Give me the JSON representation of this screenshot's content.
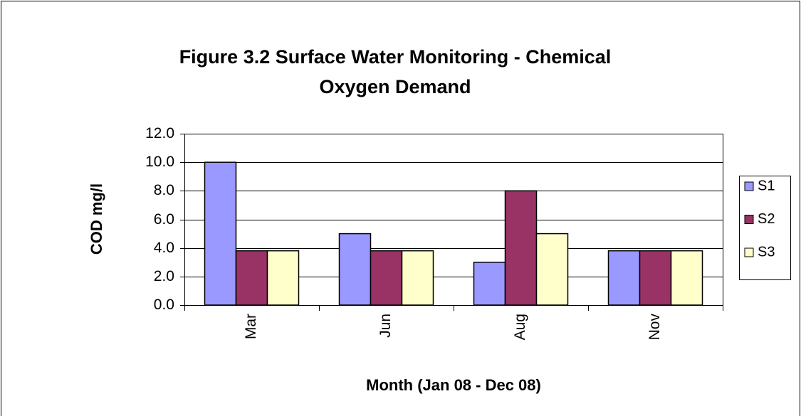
{
  "chart_data": {
    "type": "bar",
    "title": [
      "Figure 3.2 Surface Water Monitoring - Chemical",
      "Oxygen Demand"
    ],
    "x_label": "Month (Jan 08 - Dec 08)",
    "y_label": "COD mg/l",
    "categories": [
      "Mar",
      "Jun",
      "Aug",
      "Nov"
    ],
    "series": [
      {
        "name": "S1",
        "color": "#9999ff",
        "values": [
          10,
          5,
          3,
          3.8
        ]
      },
      {
        "name": "S2",
        "color": "#993366",
        "values": [
          3.8,
          3.8,
          8,
          3.8
        ]
      },
      {
        "name": "S3",
        "color": "#ffffcc",
        "values": [
          3.8,
          3.8,
          5,
          3.8
        ]
      }
    ],
    "ylim": [
      0,
      12
    ],
    "yticks": [
      {
        "value": 0,
        "label": "0.0"
      },
      {
        "value": 2,
        "label": "2.0"
      },
      {
        "value": 4,
        "label": "4.0"
      },
      {
        "value": 6,
        "label": "6.0"
      },
      {
        "value": 8,
        "label": "8.0"
      },
      {
        "value": 10,
        "label": "10.0"
      },
      {
        "value": 12,
        "label": "12.0"
      }
    ],
    "grid": true,
    "legend": "right"
  }
}
